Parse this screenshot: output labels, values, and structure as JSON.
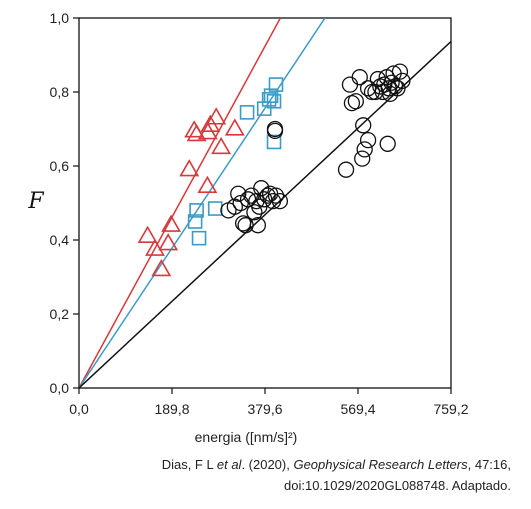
{
  "chart_data": {
    "type": "scatter",
    "xlabel": "energia ([nm/s]²)",
    "ylabel": "F",
    "xlim": [
      0,
      759.2
    ],
    "ylim": [
      0,
      1
    ],
    "x_ticks": [
      "0,0",
      "189,8",
      "379,6",
      "569,4",
      "759,2"
    ],
    "y_ticks": [
      "0,0",
      "0,2",
      "0,4",
      "0,6",
      "0,8",
      "1,0"
    ],
    "x_tick_values": [
      0,
      189.8,
      379.6,
      569.4,
      759.2
    ],
    "y_tick_values": [
      0,
      0.2,
      0.4,
      0.6,
      0.8,
      1.0
    ],
    "grid": false,
    "series": [
      {
        "marker": "triangle",
        "color": "#d9383a",
        "points": [
          [
            140,
            0.41
          ],
          [
            155,
            0.375
          ],
          [
            168,
            0.32
          ],
          [
            182,
            0.39
          ],
          [
            188,
            0.44
          ],
          [
            225,
            0.59
          ],
          [
            235,
            0.695
          ],
          [
            240,
            0.685
          ],
          [
            262,
            0.545
          ],
          [
            263,
            0.69
          ],
          [
            268,
            0.71
          ],
          [
            280,
            0.73
          ],
          [
            290,
            0.65
          ],
          [
            318,
            0.7
          ]
        ],
        "fit": [
          [
            0,
            0
          ],
          [
            411,
            1.0
          ]
        ]
      },
      {
        "marker": "square",
        "color": "#3a9bc4",
        "points": [
          [
            237,
            0.45
          ],
          [
            240,
            0.48
          ],
          [
            245,
            0.405
          ],
          [
            278,
            0.485
          ],
          [
            343,
            0.745
          ],
          [
            378,
            0.755
          ],
          [
            388,
            0.78
          ],
          [
            392,
            0.79
          ],
          [
            398,
            0.665
          ],
          [
            398,
            0.775
          ],
          [
            402,
            0.82
          ]
        ],
        "fit": [
          [
            0,
            0
          ],
          [
            502,
            1.0
          ]
        ]
      },
      {
        "marker": "circle",
        "color": "#111111",
        "points": [
          [
            305,
            0.48
          ],
          [
            318,
            0.49
          ],
          [
            325,
            0.525
          ],
          [
            330,
            0.5
          ],
          [
            335,
            0.445
          ],
          [
            340,
            0.44
          ],
          [
            345,
            0.51
          ],
          [
            352,
            0.52
          ],
          [
            358,
            0.475
          ],
          [
            362,
            0.505
          ],
          [
            365,
            0.44
          ],
          [
            368,
            0.49
          ],
          [
            372,
            0.54
          ],
          [
            378,
            0.51
          ],
          [
            385,
            0.52
          ],
          [
            390,
            0.525
          ],
          [
            396,
            0.505
          ],
          [
            400,
            0.7
          ],
          [
            402,
            0.52
          ],
          [
            410,
            0.505
          ],
          [
            400,
            0.695
          ],
          [
            545,
            0.59
          ],
          [
            553,
            0.82
          ],
          [
            557,
            0.77
          ],
          [
            565,
            0.775
          ],
          [
            573,
            0.84
          ],
          [
            578,
            0.62
          ],
          [
            580,
            0.71
          ],
          [
            583,
            0.645
          ],
          [
            590,
            0.67
          ],
          [
            590,
            0.81
          ],
          [
            598,
            0.8
          ],
          [
            605,
            0.8
          ],
          [
            610,
            0.835
          ],
          [
            615,
            0.815
          ],
          [
            620,
            0.8
          ],
          [
            623,
            0.82
          ],
          [
            628,
            0.84
          ],
          [
            630,
            0.66
          ],
          [
            632,
            0.81
          ],
          [
            635,
            0.795
          ],
          [
            638,
            0.825
          ],
          [
            642,
            0.85
          ],
          [
            645,
            0.815
          ],
          [
            650,
            0.81
          ],
          [
            655,
            0.855
          ],
          [
            660,
            0.83
          ]
        ],
        "fit": [
          [
            0,
            0
          ],
          [
            762,
            0.94
          ]
        ]
      }
    ]
  },
  "caption": {
    "line1_author_plain": "Dias, F L ",
    "line1_author_italic": "et al",
    "line1_mid": ". (2020), ",
    "line1_journal": "Geophysical Research Letters",
    "line1_end": ", 47:16,",
    "line2": "doi:10.1029/2020GL088748. Adaptado."
  }
}
